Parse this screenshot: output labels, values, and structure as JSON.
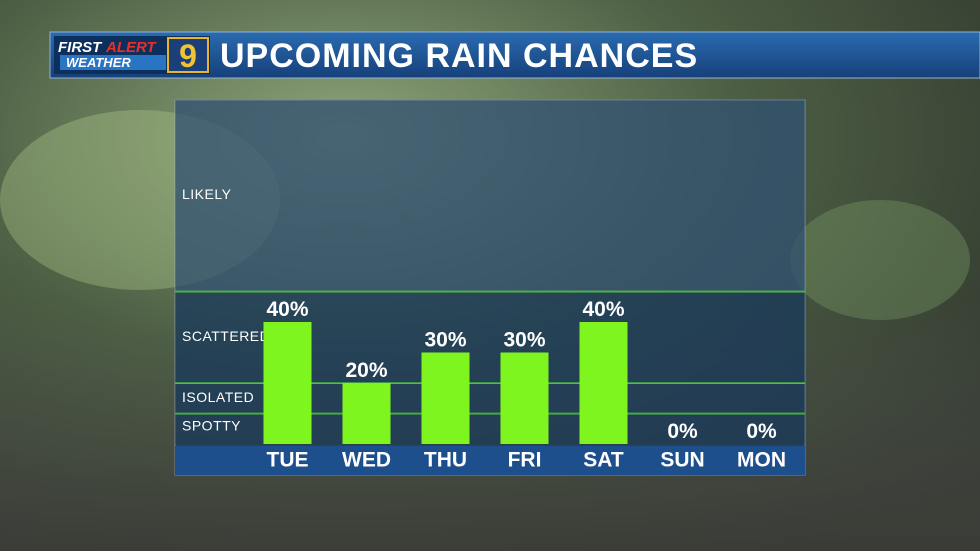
{
  "logo": {
    "first": "FIRST",
    "alert": "ALERT",
    "weather": "WEATHER",
    "channel": "9"
  },
  "chart_data": {
    "type": "bar",
    "title": "UPCOMING RAIN CHANCES",
    "categories": [
      "TUE",
      "WED",
      "THU",
      "FRI",
      "SAT",
      "SUN",
      "MON"
    ],
    "values": [
      40,
      20,
      30,
      30,
      40,
      0,
      0
    ],
    "value_labels": [
      "40%",
      "20%",
      "30%",
      "30%",
      "40%",
      "0%",
      "0%"
    ],
    "color": "#7ff520",
    "ylim": [
      0,
      113
    ],
    "zones": [
      {
        "label": "SPOTTY",
        "from": 0,
        "to": 10
      },
      {
        "label": "ISOLATED",
        "from": 10,
        "to": 20
      },
      {
        "label": "SCATTERED",
        "from": 20,
        "to": 50
      },
      {
        "label": "LIKELY",
        "from": 50,
        "to": 113
      }
    ],
    "zone_line_color": "#4dc23a"
  }
}
